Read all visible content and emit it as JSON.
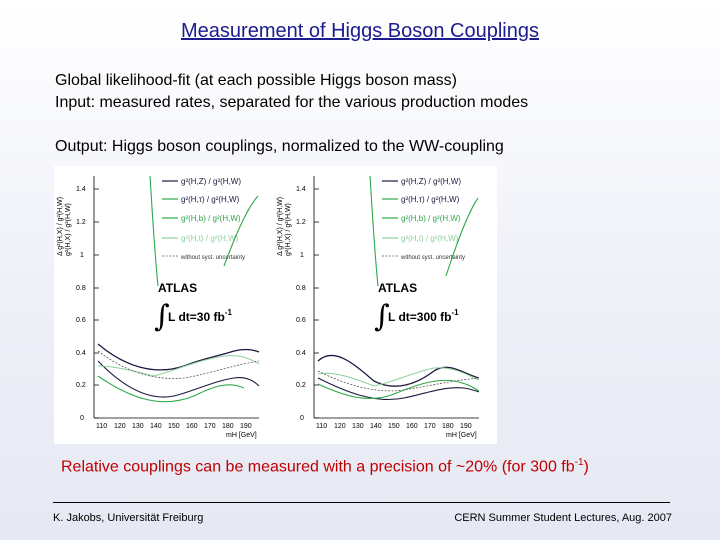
{
  "title": "Measurement of Higgs Boson Couplings",
  "line1": "Global likelihood-fit   (at each possible Higgs boson mass)",
  "line2": "Input: measured rates, separated for the various production modes",
  "line3": "Output: Higgs boson couplings, normalized to the WW-coupling",
  "figures": [
    {
      "atlas": "ATLAS",
      "lumi_text": "L dt=30 fb",
      "lumi_sup": "-1",
      "ylabel": "g²(H,X) / g²(H,W)",
      "ylabel2": "Δ g²(H,X) / g²(H,W)",
      "xlabel": "mH [GeV]",
      "legend": [
        "g²(H,Z) / g²(H,W)",
        "g²(H,τ) / g²(H,W)",
        "g²(H,b) / g²(H,W)",
        "g²(H,t) / g²(H,W)",
        "without syst. uncertainty"
      ]
    },
    {
      "atlas": "ATLAS",
      "lumi_text": "L dt=300 fb",
      "lumi_sup": "-1",
      "ylabel": "g²(H,X) / g²(H,W)",
      "ylabel2": "Δ g²(H,X) / g²(H,W)",
      "xlabel": "mH [GeV]",
      "legend": [
        "g²(H,Z) / g²(H,W)",
        "g²(H,τ) / g²(H,W)",
        "g²(H,b) / g²(H,W)",
        "g²(H,t) / g²(H,W)",
        "without syst. uncertainty"
      ]
    }
  ],
  "axis": {
    "yticks": [
      "0",
      "0.2",
      "0.4",
      "0.6",
      "0.8",
      "1",
      "1.2",
      "1.4"
    ],
    "xticks": [
      "110",
      "120",
      "130",
      "140",
      "150",
      "160",
      "170",
      "180",
      "190"
    ]
  },
  "conclusion": {
    "text": "Relative couplings can be measured with a precision of ~20%  (for 300 fb",
    "sup": "-1",
    "tail": ")"
  },
  "footer": {
    "left": "K. Jakobs,  Universität Freiburg",
    "right": "CERN Summer Student Lectures,  Aug. 2007"
  },
  "colors": {
    "title": "#1c1c8f",
    "conclusion": "#c00000",
    "curve_green": "#2ea84a",
    "curve_dark": "#1a1a40"
  }
}
